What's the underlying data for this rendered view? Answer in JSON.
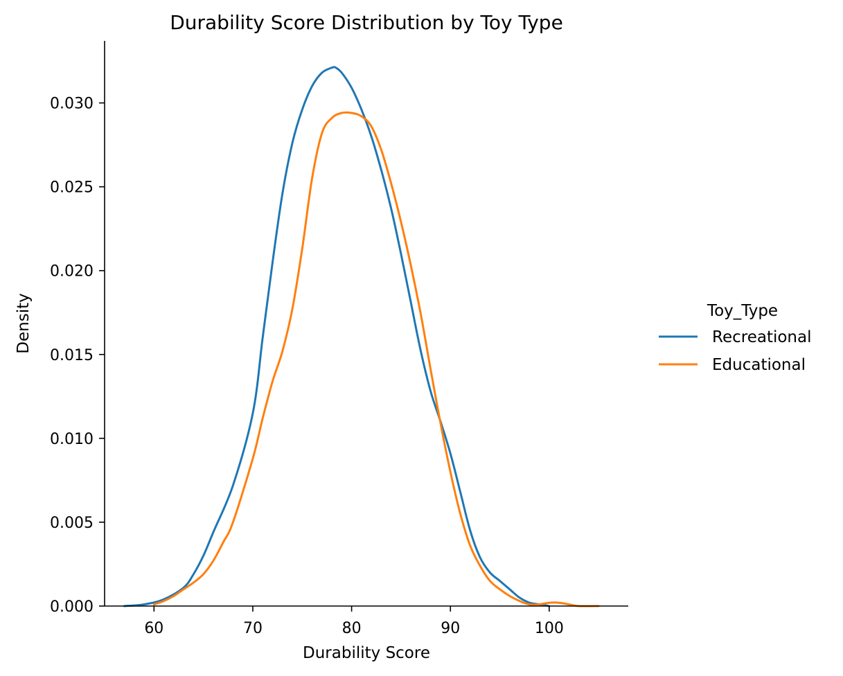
{
  "chart_data": {
    "type": "line",
    "title": "Durability Score Distribution by Toy Type",
    "xlabel": "Durability Score",
    "ylabel": "Density",
    "xlim": [
      55,
      108
    ],
    "ylim": [
      0,
      0.0337
    ],
    "xticks": [
      60,
      70,
      80,
      90,
      100
    ],
    "xtick_labels": [
      "60",
      "70",
      "80",
      "90",
      "100"
    ],
    "yticks": [
      0,
      0.005,
      0.01,
      0.015,
      0.02,
      0.025,
      0.03
    ],
    "ytick_labels": [
      "0.000",
      "0.005",
      "0.010",
      "0.015",
      "0.020",
      "0.025",
      "0.030"
    ],
    "grid": false,
    "legend": {
      "title": "Toy_Type",
      "placement": "right"
    },
    "series": [
      {
        "name": "Recreational",
        "color": "#1f77b4",
        "x": [
          57,
          59,
          61,
          63,
          64,
          65,
          66,
          68,
          70,
          71,
          72,
          73,
          74,
          75,
          76,
          77,
          78,
          78.4,
          79,
          80,
          81,
          82,
          83,
          84,
          85,
          86,
          87,
          88,
          89,
          90,
          91,
          92,
          93,
          94,
          95,
          96,
          97,
          98,
          99,
          100
        ],
        "y": [
          0.0,
          0.0001,
          0.0004,
          0.0011,
          0.0019,
          0.003,
          0.0044,
          0.0072,
          0.0115,
          0.016,
          0.0205,
          0.0246,
          0.0276,
          0.0296,
          0.031,
          0.0318,
          0.0321,
          0.0321,
          0.0318,
          0.0309,
          0.0296,
          0.028,
          0.026,
          0.0237,
          0.021,
          0.0181,
          0.0152,
          0.0128,
          0.011,
          0.0091,
          0.0068,
          0.0045,
          0.0029,
          0.002,
          0.0015,
          0.001,
          0.0005,
          0.0002,
          0.0001,
          0.0
        ]
      },
      {
        "name": "Educational",
        "color": "#ff7f0e",
        "x": [
          60,
          61,
          62,
          63,
          64,
          65,
          66,
          67,
          68,
          70,
          71,
          72,
          73,
          74,
          75,
          76,
          77,
          78,
          79,
          80,
          81,
          82,
          83,
          84,
          85,
          86,
          87,
          88,
          89,
          90,
          91,
          92,
          93,
          94,
          95,
          96,
          97,
          98,
          99,
          100,
          101,
          102,
          103,
          105
        ],
        "y": [
          0.0001,
          0.0003,
          0.0006,
          0.001,
          0.0014,
          0.0019,
          0.0027,
          0.0038,
          0.005,
          0.0088,
          0.0112,
          0.0134,
          0.0152,
          0.0177,
          0.0213,
          0.0255,
          0.0282,
          0.0291,
          0.0294,
          0.0294,
          0.0292,
          0.0286,
          0.0272,
          0.0252,
          0.0229,
          0.0203,
          0.0174,
          0.0141,
          0.0109,
          0.008,
          0.0055,
          0.0036,
          0.0024,
          0.0015,
          0.001,
          0.0006,
          0.0003,
          0.0001,
          0.0001,
          0.0002,
          0.0002,
          0.0001,
          0.0,
          0.0
        ]
      }
    ]
  }
}
